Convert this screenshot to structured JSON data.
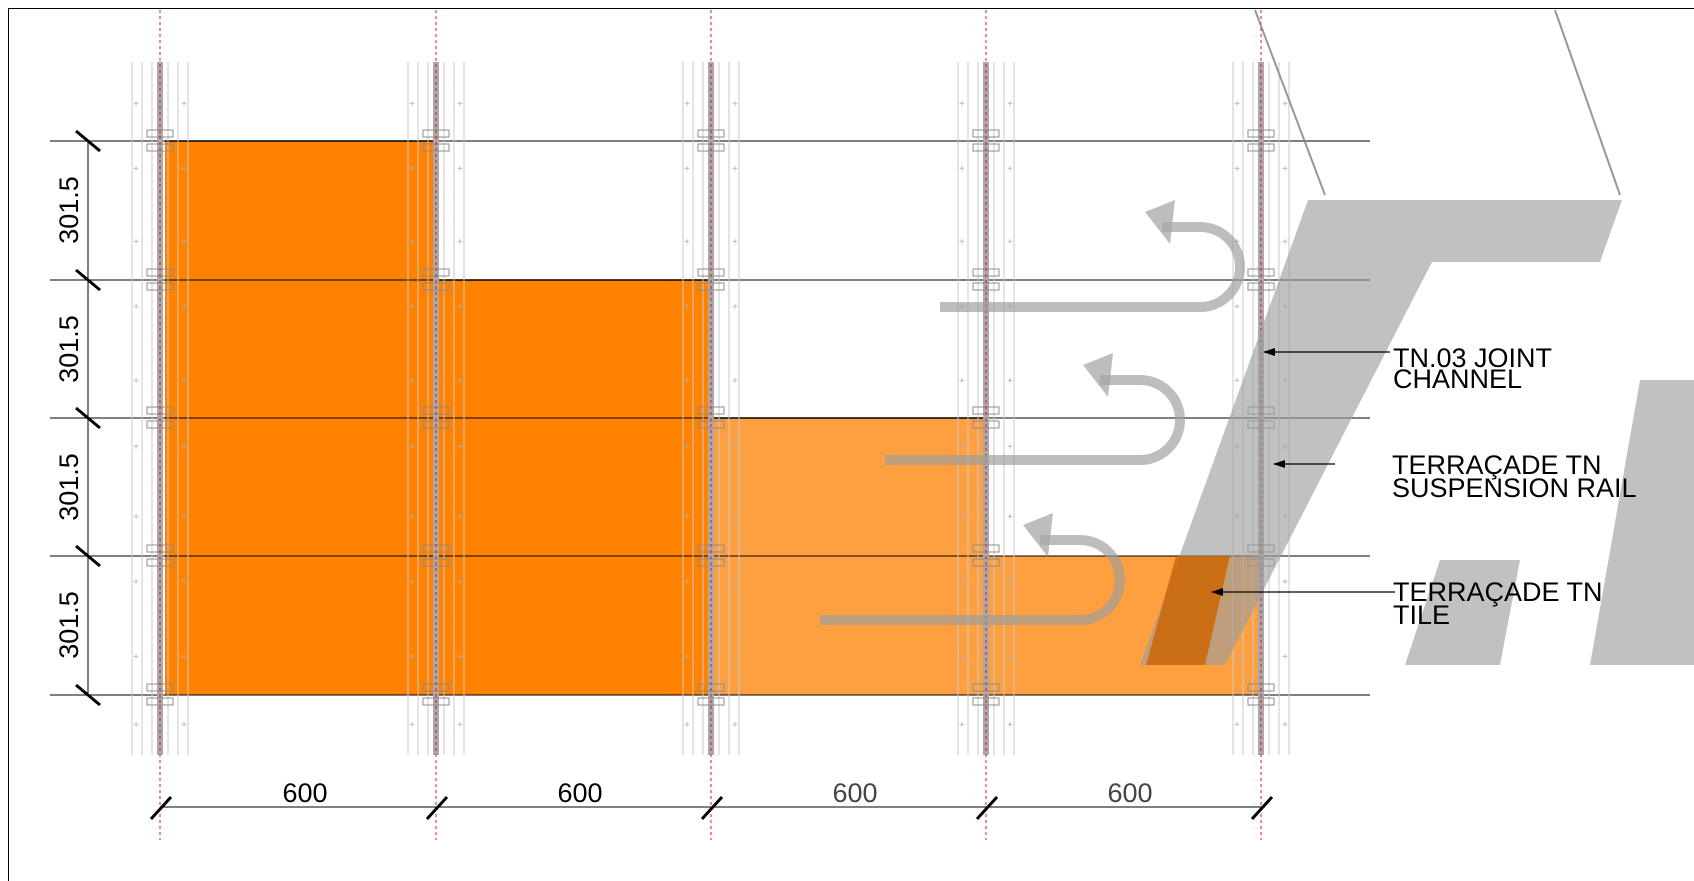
{
  "colors": {
    "tile_dark": "#ff8200",
    "tile_light": "#ffa040",
    "tile_shadow": "#c96200",
    "rail": "#a9a9a9",
    "axis_red": "#e8141e",
    "line": "#000000",
    "watermark": "#b4b4b4"
  },
  "icons": [
    "watermark-logo-icon",
    "arrow-icon",
    "dimension-tick-icon"
  ],
  "dimensions": {
    "vertical": [
      "301.5",
      "301.5",
      "301.5",
      "301.5"
    ],
    "horizontal": [
      "600",
      "600",
      "600",
      "600"
    ]
  },
  "labels": [
    {
      "line1": "TN.03 JOINT",
      "line2": "CHANNEL"
    },
    {
      "line1": "TERRAÇADE TN",
      "line2": "SUSPENSION RAIL"
    },
    {
      "line1": "TERRAÇADE TN",
      "line2": "TILE"
    }
  ]
}
